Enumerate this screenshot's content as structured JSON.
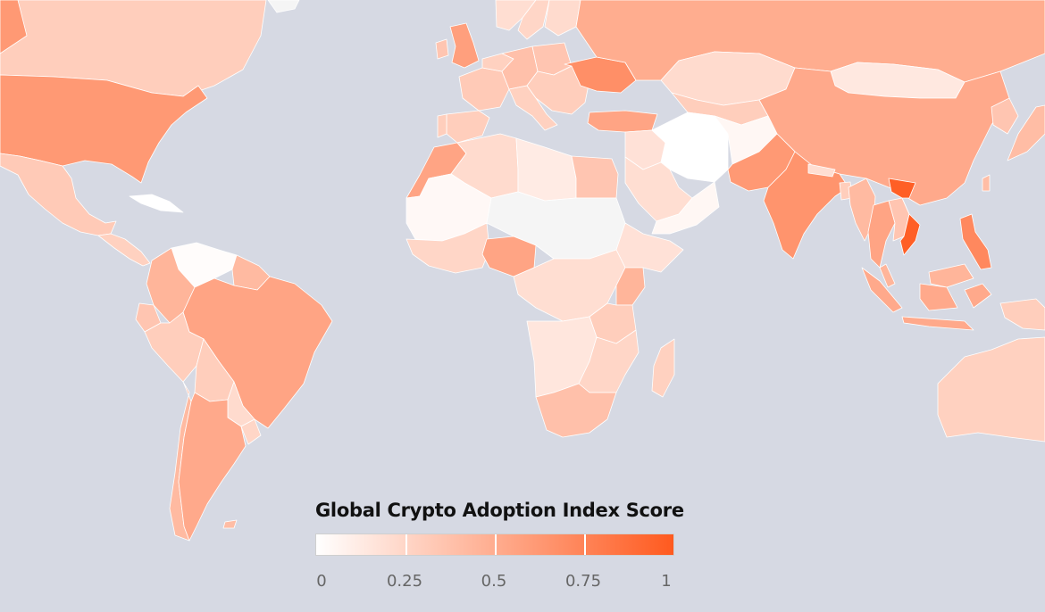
{
  "legend": {
    "title": "Global Crypto Adoption Index Score",
    "ticks": [
      "0",
      "0.25",
      "0.5",
      "0.75",
      "1"
    ],
    "tick_values": [
      0,
      0.25,
      0.5,
      0.75,
      1
    ],
    "color_low": "#ffffff",
    "color_high": "#ff5a1f"
  },
  "colors": {
    "ocean": "#d6d9e3",
    "no_data": "#f5f5f5",
    "border": "#ffffff"
  },
  "chart_data": {
    "type": "choropleth",
    "scale": {
      "min": 0,
      "max": 1
    },
    "regions": [
      {
        "id": "usa",
        "score": 0.62
      },
      {
        "id": "canada",
        "score": 0.3
      },
      {
        "id": "alaska",
        "score": 0.62
      },
      {
        "id": "greenland",
        "score": null
      },
      {
        "id": "mexico",
        "score": 0.32
      },
      {
        "id": "central-america",
        "score": 0.28
      },
      {
        "id": "cuba",
        "score": 0.0
      },
      {
        "id": "venezuela",
        "score": 0.02
      },
      {
        "id": "colombia",
        "score": 0.45
      },
      {
        "id": "guyana-suriname",
        "score": 0.42
      },
      {
        "id": "ecuador",
        "score": 0.35
      },
      {
        "id": "peru",
        "score": 0.3
      },
      {
        "id": "brazil",
        "score": 0.55
      },
      {
        "id": "bolivia",
        "score": 0.3
      },
      {
        "id": "paraguay",
        "score": 0.22
      },
      {
        "id": "chile",
        "score": 0.42
      },
      {
        "id": "argentina",
        "score": 0.52
      },
      {
        "id": "uruguay",
        "score": 0.25
      },
      {
        "id": "falklands",
        "score": 0.4
      },
      {
        "id": "iceland",
        "score": null
      },
      {
        "id": "uk",
        "score": 0.58
      },
      {
        "id": "ireland",
        "score": 0.35
      },
      {
        "id": "norway",
        "score": 0.2
      },
      {
        "id": "sweden",
        "score": 0.25
      },
      {
        "id": "finland",
        "score": 0.22
      },
      {
        "id": "western-europe",
        "score": 0.28
      },
      {
        "id": "france",
        "score": 0.32
      },
      {
        "id": "spain",
        "score": 0.3
      },
      {
        "id": "portugal",
        "score": 0.3
      },
      {
        "id": "germany",
        "score": 0.38
      },
      {
        "id": "poland",
        "score": 0.35
      },
      {
        "id": "italy",
        "score": 0.28
      },
      {
        "id": "balkans",
        "score": 0.3
      },
      {
        "id": "ukraine",
        "score": 0.68
      },
      {
        "id": "turkey",
        "score": 0.55
      },
      {
        "id": "russia",
        "score": 0.5
      },
      {
        "id": "kazakhstan",
        "score": 0.22
      },
      {
        "id": "central-asia",
        "score": 0.3
      },
      {
        "id": "mongolia",
        "score": 0.14
      },
      {
        "id": "china",
        "score": 0.52
      },
      {
        "id": "korea",
        "score": 0.35
      },
      {
        "id": "japan",
        "score": 0.4
      },
      {
        "id": "taiwan",
        "score": 0.4
      },
      {
        "id": "iran",
        "score": 0.0
      },
      {
        "id": "afghanistan",
        "score": 0.05
      },
      {
        "id": "pakistan",
        "score": 0.62
      },
      {
        "id": "india",
        "score": 0.65
      },
      {
        "id": "nepal",
        "score": 0.2
      },
      {
        "id": "bangladesh",
        "score": 0.3
      },
      {
        "id": "myanmar",
        "score": 0.42
      },
      {
        "id": "thailand",
        "score": 0.55
      },
      {
        "id": "vietnam",
        "score": 0.97
      },
      {
        "id": "cambodia-laos",
        "score": 0.35
      },
      {
        "id": "malaysia",
        "score": 0.45
      },
      {
        "id": "indonesia",
        "score": 0.52
      },
      {
        "id": "philippines",
        "score": 0.72
      },
      {
        "id": "png",
        "score": 0.3
      },
      {
        "id": "australia",
        "score": 0.28
      },
      {
        "id": "new-zealand",
        "score": 0.3
      },
      {
        "id": "saudi-arabia",
        "score": 0.2
      },
      {
        "id": "yemen-oman",
        "score": 0.05
      },
      {
        "id": "iraq-syria",
        "score": 0.18
      },
      {
        "id": "morocco",
        "score": 0.55
      },
      {
        "id": "algeria",
        "score": 0.22
      },
      {
        "id": "libya",
        "score": 0.12
      },
      {
        "id": "egypt",
        "score": 0.35
      },
      {
        "id": "mauritania-mali",
        "score": 0.04
      },
      {
        "id": "west-africa",
        "score": 0.25
      },
      {
        "id": "nigeria",
        "score": 0.55
      },
      {
        "id": "sahel",
        "score": null
      },
      {
        "id": "ethiopia-sudan",
        "score": 0.18
      },
      {
        "id": "kenya",
        "score": 0.45
      },
      {
        "id": "central-africa",
        "score": 0.2
      },
      {
        "id": "tanzania",
        "score": 0.3
      },
      {
        "id": "east-africa-south",
        "score": 0.25
      },
      {
        "id": "angola-namibia",
        "score": 0.15
      },
      {
        "id": "south-africa",
        "score": 0.38
      },
      {
        "id": "madagascar",
        "score": 0.28
      }
    ]
  }
}
